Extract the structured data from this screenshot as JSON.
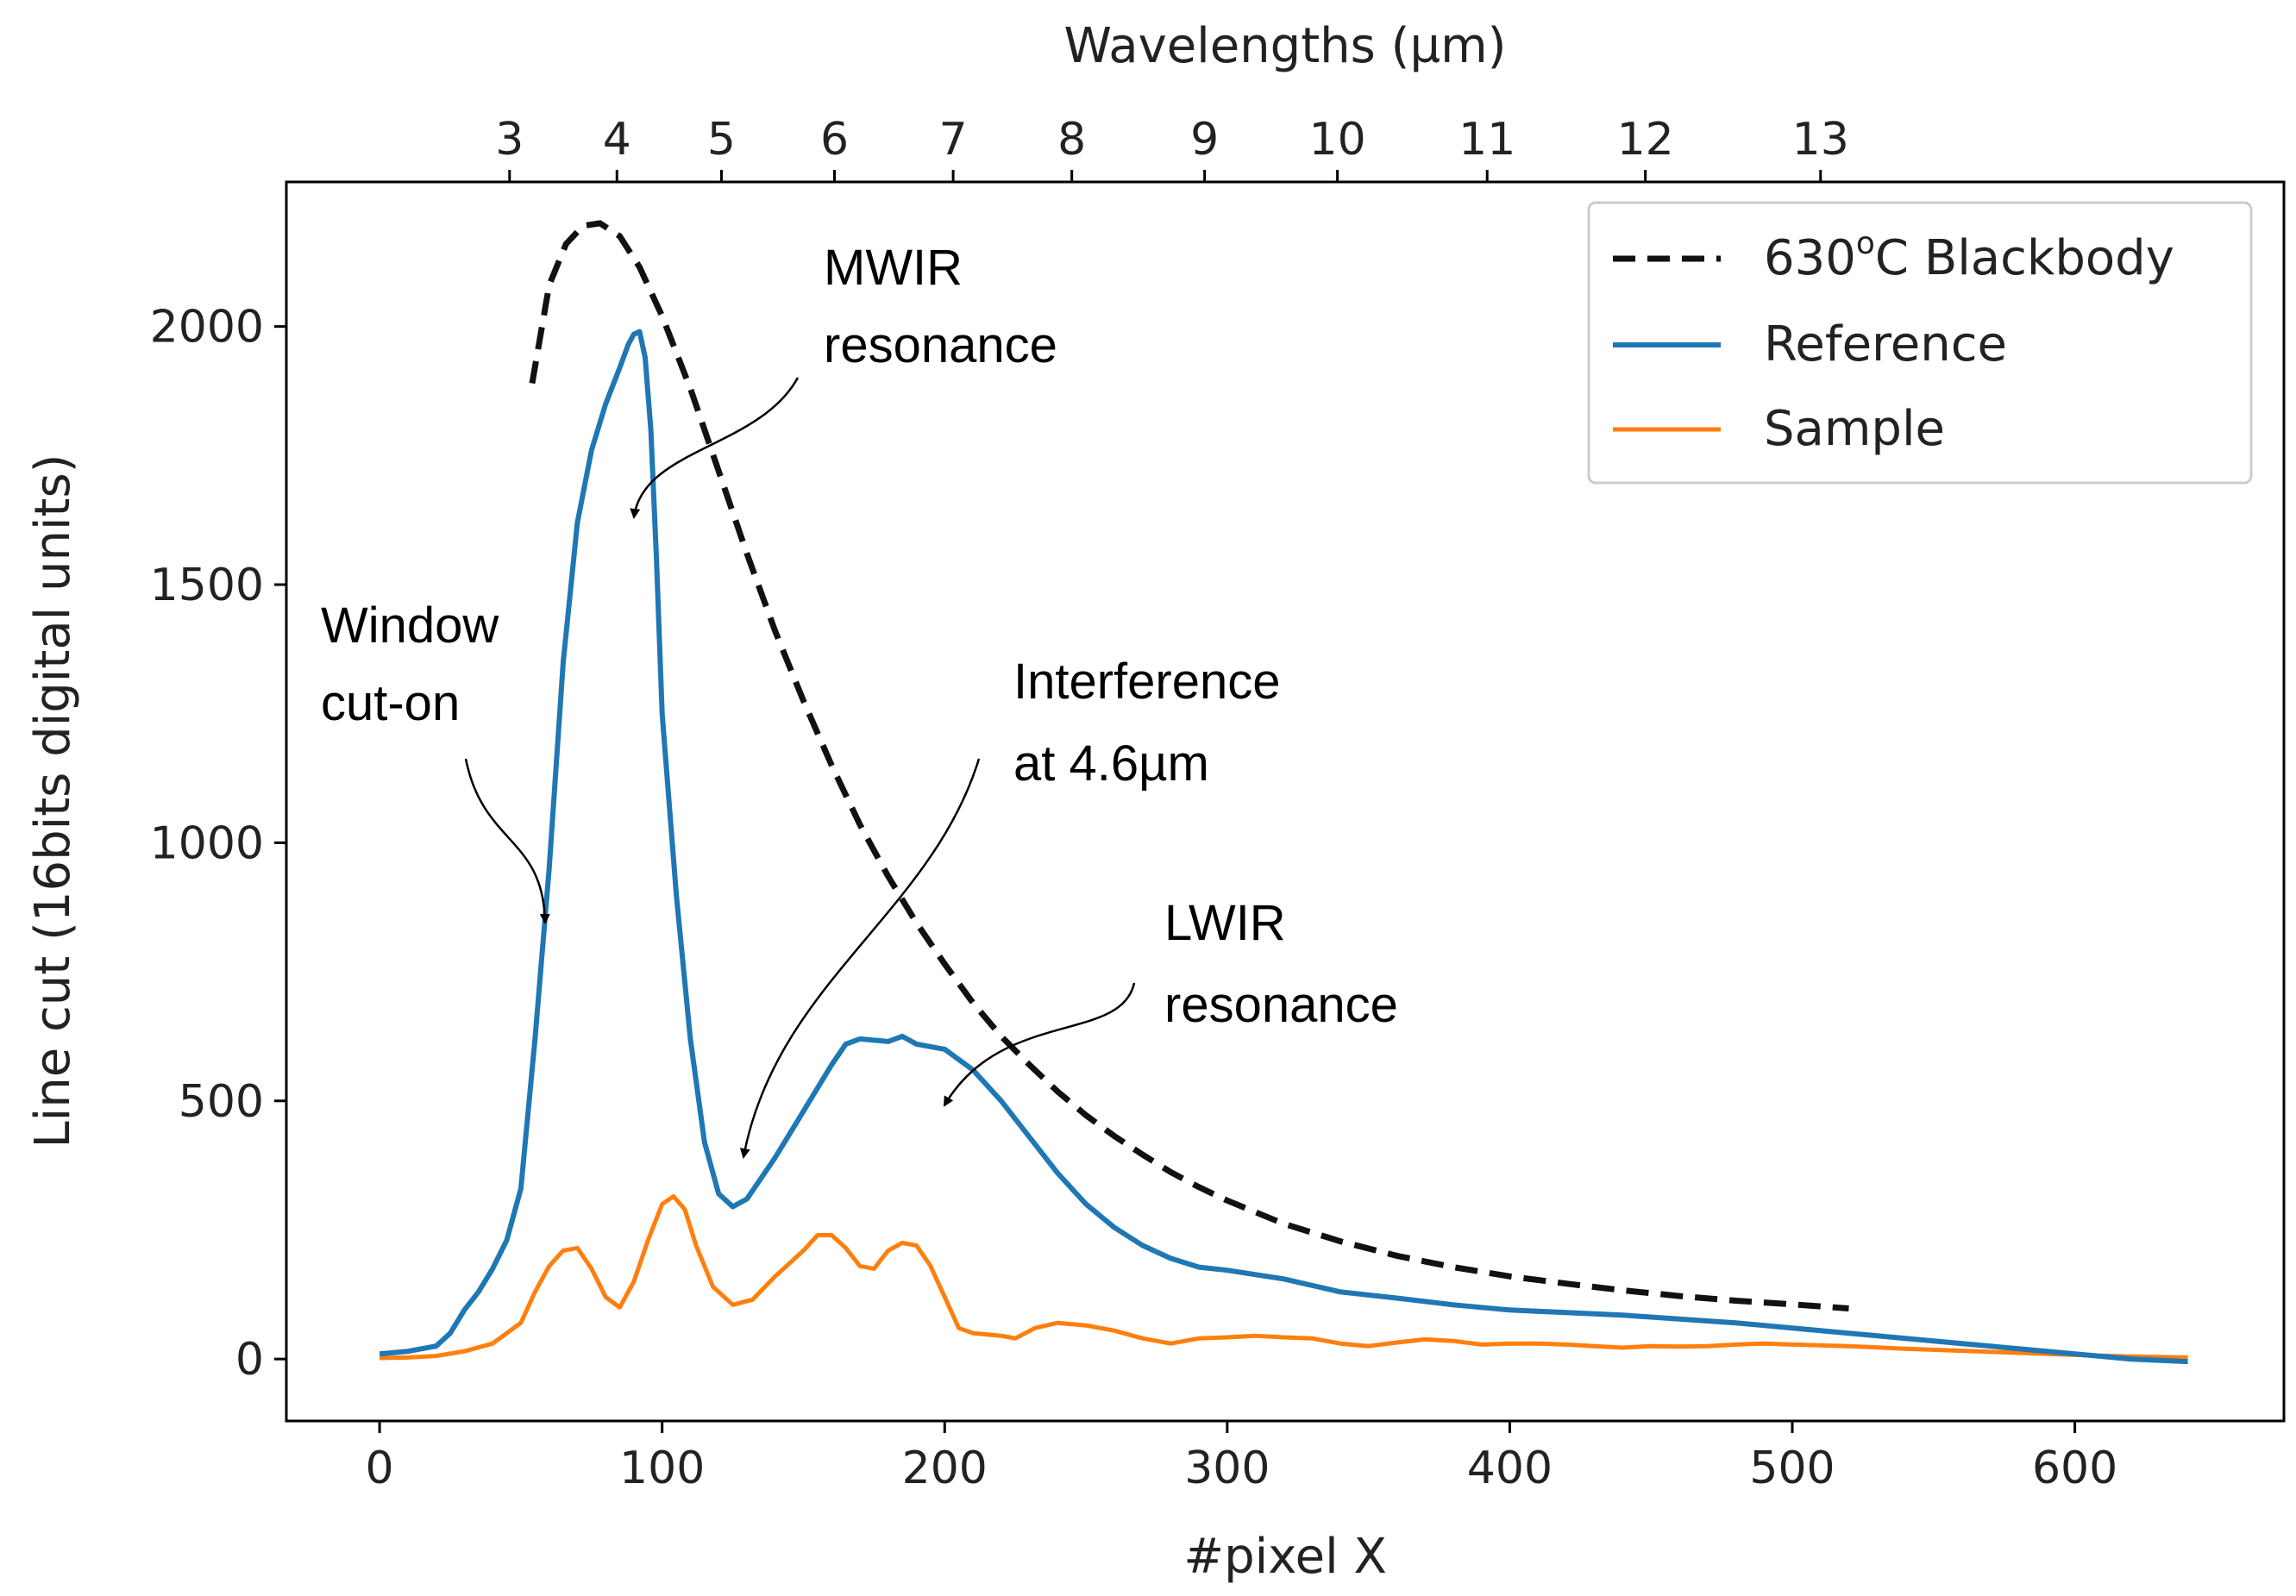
{
  "chart_data": {
    "type": "line",
    "title": "",
    "xlabel": "#pixel X",
    "ylabel": "Line cut (16bits digital units)",
    "secondary_xlabel": "Wavelengths (µm)",
    "xlim": [
      -33,
      674
    ],
    "ylim": [
      -120,
      2280
    ],
    "x_ticks": [
      0,
      100,
      200,
      300,
      400,
      500,
      600
    ],
    "y_ticks": [
      0,
      500,
      1000,
      1500,
      2000
    ],
    "x_tick_labels": [
      "0",
      "100",
      "200",
      "300",
      "400",
      "500",
      "600"
    ],
    "y_tick_labels": [
      "0",
      "500",
      "1000",
      "1500",
      "2000"
    ],
    "wavelength_ticks": [
      {
        "label": "3",
        "pixel": 46
      },
      {
        "label": "4",
        "pixel": 84
      },
      {
        "label": "5",
        "pixel": 121
      },
      {
        "label": "6",
        "pixel": 161
      },
      {
        "label": "7",
        "pixel": 203
      },
      {
        "label": "8",
        "pixel": 245
      },
      {
        "label": "9",
        "pixel": 292
      },
      {
        "label": "10",
        "pixel": 339
      },
      {
        "label": "11",
        "pixel": 392
      },
      {
        "label": "12",
        "pixel": 448
      },
      {
        "label": "13",
        "pixel": 510
      }
    ],
    "legend_position": "top-right",
    "series": [
      {
        "name": "630",
        "label_superscript": "o",
        "label_suffix": "C Blackbody",
        "color": "#111111",
        "style": "dashed",
        "points": [
          [
            54,
            1890
          ],
          [
            60,
            2080
          ],
          [
            66,
            2160
          ],
          [
            72,
            2195
          ],
          [
            78,
            2200
          ],
          [
            85,
            2175
          ],
          [
            92,
            2115
          ],
          [
            100,
            2020
          ],
          [
            110,
            1880
          ],
          [
            120,
            1720
          ],
          [
            130,
            1560
          ],
          [
            140,
            1410
          ],
          [
            150,
            1275
          ],
          [
            160,
            1150
          ],
          [
            170,
            1035
          ],
          [
            180,
            935
          ],
          [
            190,
            845
          ],
          [
            200,
            765
          ],
          [
            210,
            690
          ],
          [
            220,
            625
          ],
          [
            230,
            570
          ],
          [
            240,
            518
          ],
          [
            250,
            472
          ],
          [
            260,
            432
          ],
          [
            270,
            396
          ],
          [
            280,
            362
          ],
          [
            290,
            333
          ],
          [
            300,
            307
          ],
          [
            320,
            262
          ],
          [
            340,
            228
          ],
          [
            360,
            200
          ],
          [
            380,
            178
          ],
          [
            400,
            160
          ],
          [
            420,
            146
          ],
          [
            440,
            133
          ],
          [
            460,
            122
          ],
          [
            480,
            113
          ],
          [
            500,
            106
          ],
          [
            520,
            98
          ]
        ]
      },
      {
        "name": "Reference",
        "color": "#1f77b4",
        "style": "solid",
        "points": [
          [
            0,
            10
          ],
          [
            10,
            15
          ],
          [
            20,
            25
          ],
          [
            25,
            50
          ],
          [
            30,
            95
          ],
          [
            35,
            130
          ],
          [
            40,
            175
          ],
          [
            45,
            230
          ],
          [
            50,
            330
          ],
          [
            55,
            620
          ],
          [
            60,
            950
          ],
          [
            65,
            1350
          ],
          [
            70,
            1620
          ],
          [
            75,
            1760
          ],
          [
            80,
            1850
          ],
          [
            85,
            1920
          ],
          [
            88,
            1965
          ],
          [
            90,
            1985
          ],
          [
            92,
            1990
          ],
          [
            94,
            1940
          ],
          [
            96,
            1800
          ],
          [
            98,
            1550
          ],
          [
            100,
            1250
          ],
          [
            105,
            900
          ],
          [
            110,
            620
          ],
          [
            115,
            420
          ],
          [
            120,
            320
          ],
          [
            125,
            295
          ],
          [
            130,
            310
          ],
          [
            140,
            390
          ],
          [
            150,
            480
          ],
          [
            160,
            570
          ],
          [
            165,
            610
          ],
          [
            170,
            620
          ],
          [
            180,
            615
          ],
          [
            185,
            625
          ],
          [
            190,
            610
          ],
          [
            200,
            600
          ],
          [
            210,
            560
          ],
          [
            220,
            500
          ],
          [
            230,
            430
          ],
          [
            240,
            360
          ],
          [
            250,
            300
          ],
          [
            260,
            255
          ],
          [
            270,
            220
          ],
          [
            280,
            195
          ],
          [
            290,
            178
          ],
          [
            300,
            172
          ],
          [
            320,
            155
          ],
          [
            340,
            130
          ],
          [
            360,
            118
          ],
          [
            380,
            105
          ],
          [
            400,
            95
          ],
          [
            440,
            85
          ],
          [
            480,
            70
          ],
          [
            520,
            50
          ],
          [
            560,
            30
          ],
          [
            600,
            10
          ],
          [
            620,
            0
          ],
          [
            640,
            -5
          ]
        ]
      },
      {
        "name": "Sample",
        "color": "#ff7f0e",
        "style": "solid",
        "points": [
          [
            0,
            2
          ],
          [
            10,
            3
          ],
          [
            20,
            6
          ],
          [
            30,
            15
          ],
          [
            40,
            30
          ],
          [
            50,
            70
          ],
          [
            55,
            130
          ],
          [
            60,
            180
          ],
          [
            65,
            210
          ],
          [
            70,
            215
          ],
          [
            75,
            175
          ],
          [
            80,
            120
          ],
          [
            85,
            100
          ],
          [
            90,
            150
          ],
          [
            95,
            230
          ],
          [
            100,
            300
          ],
          [
            104,
            315
          ],
          [
            108,
            290
          ],
          [
            112,
            220
          ],
          [
            118,
            140
          ],
          [
            125,
            105
          ],
          [
            132,
            115
          ],
          [
            140,
            160
          ],
          [
            150,
            210
          ],
          [
            155,
            240
          ],
          [
            160,
            240
          ],
          [
            165,
            215
          ],
          [
            170,
            180
          ],
          [
            175,
            175
          ],
          [
            180,
            210
          ],
          [
            185,
            225
          ],
          [
            190,
            220
          ],
          [
            195,
            180
          ],
          [
            200,
            120
          ],
          [
            205,
            60
          ],
          [
            210,
            50
          ],
          [
            220,
            45
          ],
          [
            225,
            40
          ],
          [
            232,
            60
          ],
          [
            240,
            70
          ],
          [
            250,
            65
          ],
          [
            260,
            55
          ],
          [
            270,
            40
          ],
          [
            280,
            30
          ],
          [
            290,
            40
          ],
          [
            300,
            42
          ],
          [
            310,
            45
          ],
          [
            320,
            42
          ],
          [
            330,
            40
          ],
          [
            340,
            30
          ],
          [
            350,
            25
          ],
          [
            360,
            32
          ],
          [
            370,
            38
          ],
          [
            380,
            35
          ],
          [
            390,
            28
          ],
          [
            400,
            30
          ],
          [
            410,
            30
          ],
          [
            420,
            28
          ],
          [
            430,
            25
          ],
          [
            440,
            22
          ],
          [
            450,
            25
          ],
          [
            460,
            24
          ],
          [
            470,
            25
          ],
          [
            480,
            28
          ],
          [
            490,
            30
          ],
          [
            500,
            28
          ],
          [
            520,
            25
          ],
          [
            540,
            20
          ],
          [
            560,
            16
          ],
          [
            580,
            12
          ],
          [
            600,
            8
          ],
          [
            620,
            5
          ],
          [
            640,
            3
          ]
        ]
      }
    ],
    "annotations": [
      {
        "lines": [
          "MWIR",
          "resonance"
        ],
        "target": [
          87,
          1640
        ]
      },
      {
        "lines": [
          "Window",
          "cut-on"
        ],
        "target": [
          59,
          840
        ]
      },
      {
        "lines": [
          "Interference",
          "at 4.6µm"
        ],
        "target": [
          128,
          370
        ]
      },
      {
        "lines": [
          "LWIR",
          "resonance"
        ],
        "target": [
          198,
          480
        ]
      }
    ]
  }
}
